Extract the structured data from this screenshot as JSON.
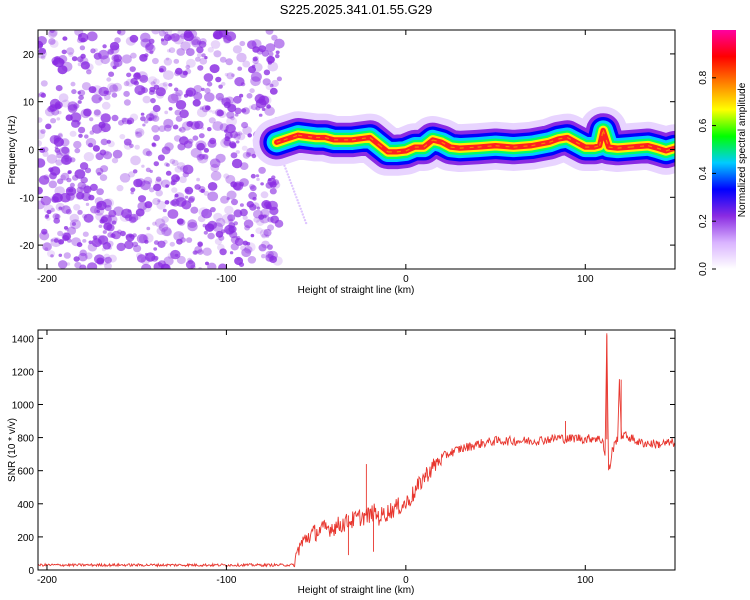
{
  "title": "S225.2025.341.01.55.G29",
  "colors": {
    "snr_line": "#e8372f",
    "noise_purple": "#8a2be2",
    "track_red": "#ff2020",
    "colorbar_stops": [
      "#ffffff",
      "#d9b3ff",
      "#8a2be2",
      "#0000ff",
      "#00ccff",
      "#00ff00",
      "#ffff00",
      "#ff8000",
      "#ff0000",
      "#ff00a0"
    ]
  },
  "chart_data": [
    {
      "type": "heatmap",
      "title": "S225.2025.341.01.55.G29",
      "xlabel": "Height of straight line (km)",
      "ylabel": "Frequency (Hz)",
      "xlim": [
        -205,
        150
      ],
      "ylim": [
        -25,
        25
      ],
      "x_ticks": [
        -200,
        -100,
        0,
        100
      ],
      "y_ticks": [
        -20,
        -10,
        0,
        10,
        20
      ],
      "colorbar": {
        "label": "Normalized spectral amplitude",
        "range": [
          0,
          1.0
        ],
        "ticks": [
          0.0,
          0.2,
          0.4,
          0.6,
          0.8
        ]
      },
      "noise_region_x": [
        -205,
        -70
      ],
      "track_center_hz": [
        [
          -72,
          1.5
        ],
        [
          -68,
          2.0
        ],
        [
          -60,
          3.0
        ],
        [
          -50,
          2.5
        ],
        [
          -45,
          2.5
        ],
        [
          -40,
          2.0
        ],
        [
          -30,
          2.0
        ],
        [
          -20,
          2.5
        ],
        [
          -15,
          1.0
        ],
        [
          -10,
          -0.5
        ],
        [
          -5,
          -0.5
        ],
        [
          0,
          -0.3
        ],
        [
          5,
          0.5
        ],
        [
          10,
          0.5
        ],
        [
          15,
          2.0
        ],
        [
          20,
          1.5
        ],
        [
          25,
          0.5
        ],
        [
          30,
          0.3
        ],
        [
          40,
          0.5
        ],
        [
          50,
          0.8
        ],
        [
          60,
          0.5
        ],
        [
          70,
          0.8
        ],
        [
          80,
          1.5
        ],
        [
          85,
          2.2
        ],
        [
          90,
          2.5
        ],
        [
          95,
          1.5
        ],
        [
          100,
          0.5
        ],
        [
          105,
          0.5
        ],
        [
          108,
          0.8
        ],
        [
          110,
          4.0
        ],
        [
          113,
          0.5
        ],
        [
          118,
          0.3
        ],
        [
          125,
          0.5
        ],
        [
          135,
          0.8
        ],
        [
          140,
          0.3
        ],
        [
          145,
          -0.3
        ],
        [
          150,
          0.3
        ]
      ]
    },
    {
      "type": "line",
      "xlabel": "Height of straight line (km)",
      "ylabel": "SNR (10 * v/v)",
      "xlim": [
        -205,
        150
      ],
      "ylim": [
        0,
        1450
      ],
      "x_ticks": [
        -200,
        -100,
        0,
        100
      ],
      "y_ticks": [
        0,
        200,
        400,
        600,
        800,
        1000,
        1200,
        1400
      ],
      "series": [
        {
          "x": [
            -205,
            -180,
            -150,
            -120,
            -90,
            -70,
            -65,
            -62,
            -60,
            -55,
            -50,
            -45,
            -40,
            -35,
            -30,
            -25,
            -20,
            -18,
            -15,
            -10,
            -5,
            0,
            5,
            10,
            15,
            20,
            25,
            30,
            40,
            50,
            60,
            70,
            80,
            85,
            90,
            95,
            100,
            105,
            110,
            111,
            112,
            113,
            114,
            115,
            118,
            119,
            120,
            125,
            130,
            140,
            150
          ],
          "y": [
            30,
            30,
            30,
            30,
            30,
            30,
            30,
            30,
            130,
            200,
            230,
            250,
            260,
            280,
            300,
            320,
            330,
            350,
            320,
            350,
            380,
            400,
            470,
            560,
            620,
            680,
            710,
            730,
            760,
            780,
            780,
            780,
            790,
            800,
            790,
            800,
            790,
            800,
            780,
            680,
            1400,
            600,
            640,
            720,
            800,
            1150,
            820,
            800,
            770,
            760,
            770
          ]
        }
      ]
    }
  ]
}
